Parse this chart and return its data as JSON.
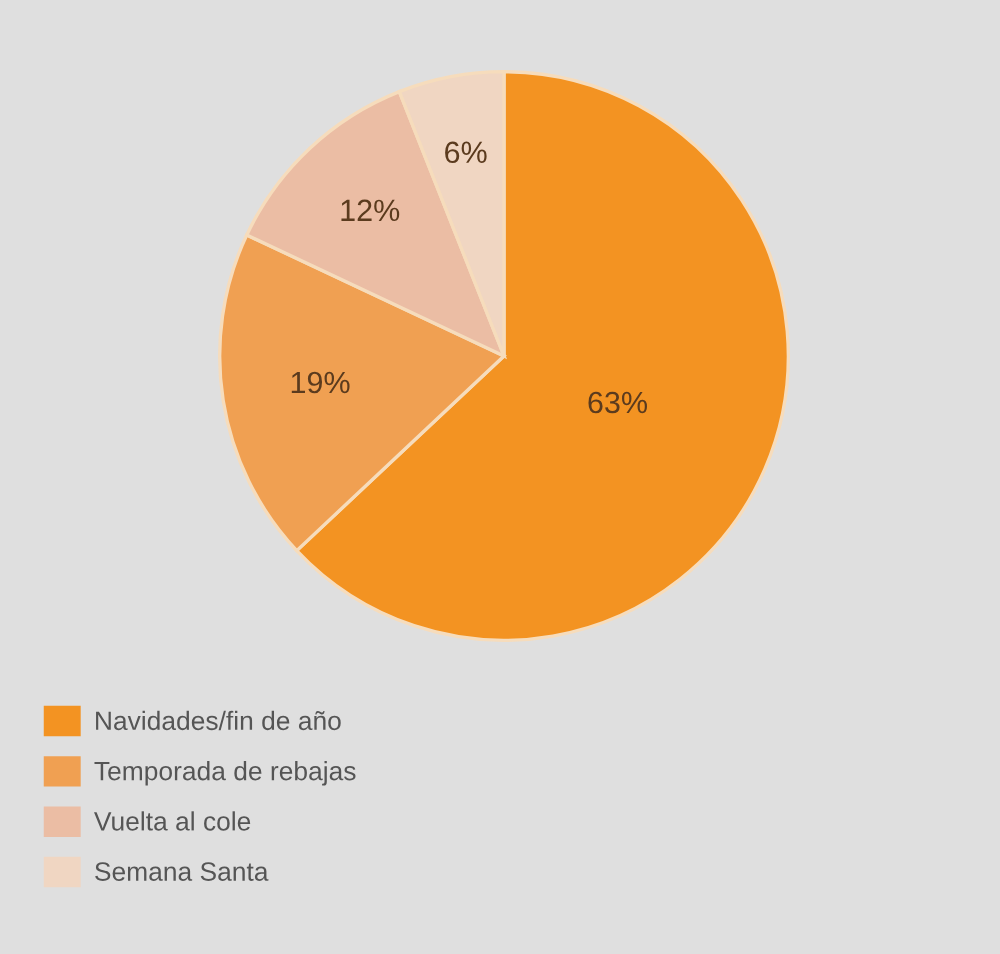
{
  "chart_data": {
    "type": "pie",
    "categories": [
      "Navidades/fin de año",
      "Temporada de rebajas",
      "Vuelta al cole",
      "Semana Santa"
    ],
    "values": [
      63,
      19,
      12,
      6
    ],
    "colors": [
      "#f39322",
      "#f0a052",
      "#ebbda4",
      "#f0d6c2"
    ],
    "value_labels": [
      "63%",
      "19%",
      "12%",
      "6%"
    ],
    "legend": "bottom left"
  }
}
